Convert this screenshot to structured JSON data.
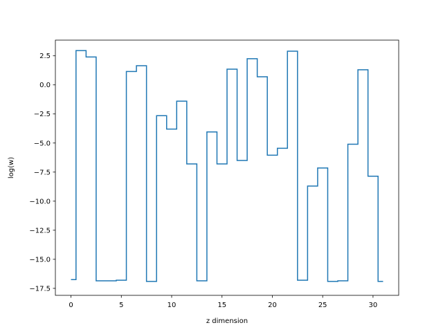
{
  "chart_data": {
    "type": "line",
    "step": "mid",
    "xlabel": "z dimension",
    "ylabel": "log(w)",
    "xlim": [
      -1.55,
      32.55
    ],
    "ylim": [
      -18.1,
      3.85
    ],
    "xticks": [
      0,
      5,
      10,
      15,
      20,
      25,
      30
    ],
    "yticks": [
      -17.5,
      -15.0,
      -12.5,
      -10.0,
      -7.5,
      -5.0,
      -2.5,
      0.0,
      2.5
    ],
    "ytick_labels": [
      "−17.5",
      "−15.0",
      "−12.5",
      "−10.0",
      "−7.5",
      "−5.0",
      "−2.5",
      "0.0",
      "2.5"
    ],
    "xtick_labels": [
      "0",
      "5",
      "10",
      "15",
      "20",
      "25",
      "30"
    ],
    "color": "#1f77b4",
    "series": [
      {
        "x": [
          0,
          1,
          2,
          3,
          4,
          5,
          6,
          7,
          8,
          9,
          10,
          11,
          12,
          13,
          14,
          15,
          16,
          17,
          18,
          19,
          20,
          21,
          22,
          23,
          24,
          25,
          26,
          27,
          28,
          29,
          30,
          31
        ],
        "y": [
          -16.75,
          2.95,
          2.4,
          -16.85,
          -16.85,
          -16.8,
          1.15,
          1.65,
          -16.9,
          -2.65,
          -3.8,
          -1.4,
          -6.8,
          -16.85,
          -4.05,
          -6.8,
          1.35,
          -6.5,
          2.25,
          0.7,
          -6.05,
          -5.45,
          2.9,
          -16.8,
          -8.7,
          -7.15,
          -16.9,
          -16.85,
          -5.1,
          1.3,
          -7.85,
          -16.9
        ]
      }
    ]
  }
}
